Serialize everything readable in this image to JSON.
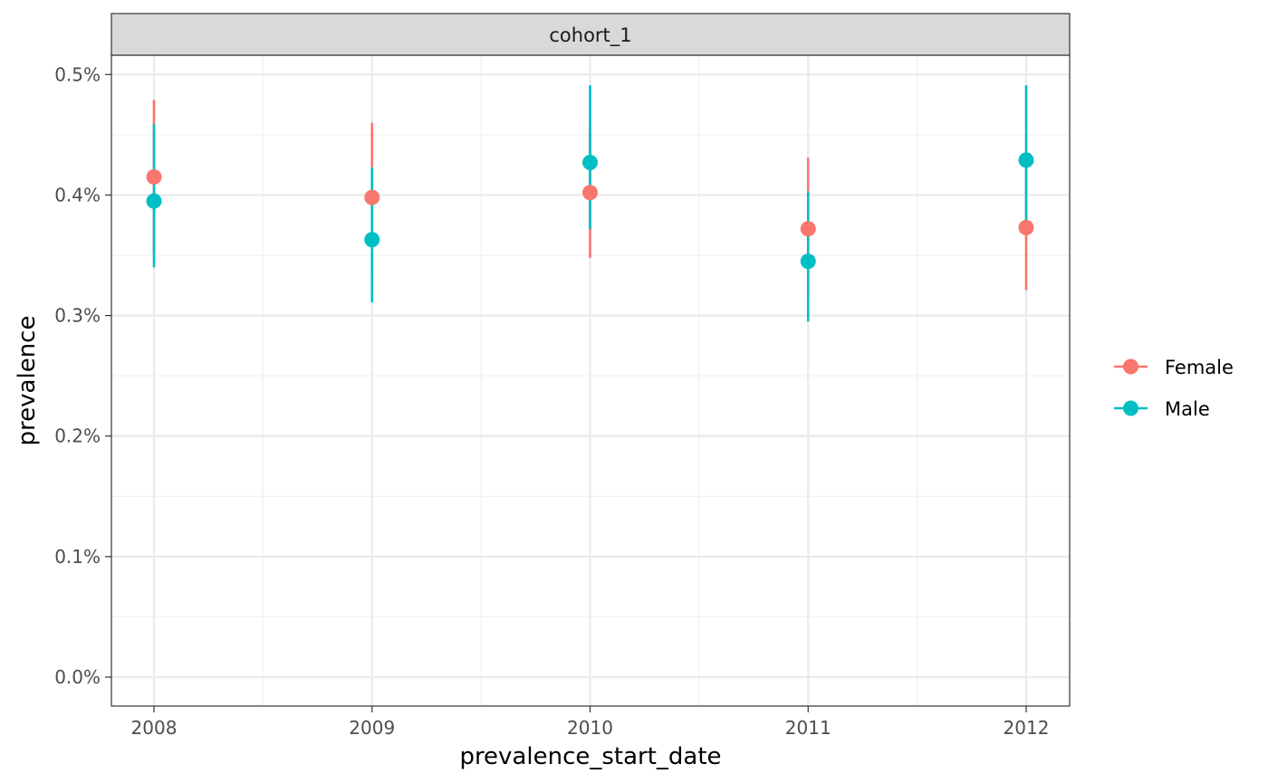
{
  "chart_data": {
    "type": "scatter",
    "facet_label": "cohort_1",
    "xlabel": "prevalence_start_date",
    "ylabel": "prevalence",
    "x": [
      "2008",
      "2009",
      "2010",
      "2011",
      "2012"
    ],
    "ylim": [
      -0.00024,
      0.00516
    ],
    "yticks": [
      0.0,
      0.001,
      0.002,
      0.003,
      0.004,
      0.005
    ],
    "ytick_labels": [
      "0.0%",
      "0.1%",
      "0.2%",
      "0.3%",
      "0.4%",
      "0.5%"
    ],
    "grid": true,
    "legend_position": "right",
    "series": [
      {
        "name": "Female",
        "color": "#F8766D",
        "values": [
          0.00415,
          0.00398,
          0.00402,
          0.00372,
          0.00373
        ],
        "lower": [
          0.00352,
          0.00337,
          0.00348,
          0.00316,
          0.00321
        ],
        "upper": [
          0.00479,
          0.0046,
          0.00457,
          0.00431,
          0.00426
        ]
      },
      {
        "name": "Male",
        "color": "#00BFC4",
        "values": [
          0.00395,
          0.00363,
          0.00427,
          0.00345,
          0.00429
        ],
        "lower": [
          0.0034,
          0.00311,
          0.00372,
          0.00295,
          0.00368
        ],
        "upper": [
          0.00459,
          0.00423,
          0.00491,
          0.00403,
          0.00491
        ]
      }
    ]
  }
}
